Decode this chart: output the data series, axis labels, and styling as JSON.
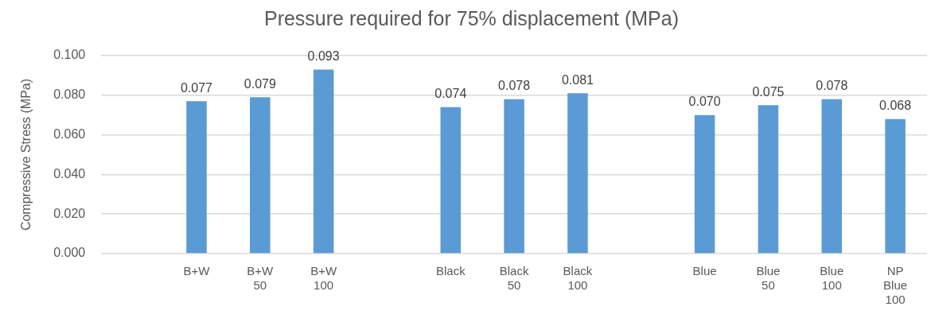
{
  "chart_data": {
    "type": "bar",
    "title": "Pressure required for 75% displacement (MPa)",
    "ylabel": "Compressive Stress (MPa)",
    "categories": [
      null,
      "B+W",
      "B+W 50",
      "B+W 100",
      null,
      "Black",
      "Black 50",
      "Black 100",
      null,
      "Blue",
      "Blue 50",
      "Blue 100",
      "NP Blue 100"
    ],
    "values": [
      null,
      0.077,
      0.079,
      0.093,
      null,
      0.074,
      0.078,
      0.081,
      null,
      0.07,
      0.075,
      0.078,
      0.068
    ],
    "value_labels": [
      null,
      "0.077",
      "0.079",
      "0.093",
      null,
      "0.074",
      "0.078",
      "0.081",
      null,
      "0.070",
      "0.075",
      "0.078",
      "0.068"
    ],
    "color": "#5b9bd5",
    "ylim": [
      0,
      0.1
    ],
    "yticks": [
      {
        "value": 0,
        "label": "0.000"
      },
      {
        "value": 0.02,
        "label": "0.020"
      },
      {
        "value": 0.04,
        "label": "0.040"
      },
      {
        "value": 0.06,
        "label": "0.060"
      },
      {
        "value": 0.08,
        "label": "0.080"
      },
      {
        "value": 0.1,
        "label": "0.100"
      }
    ],
    "grid": "y",
    "legend": false
  }
}
